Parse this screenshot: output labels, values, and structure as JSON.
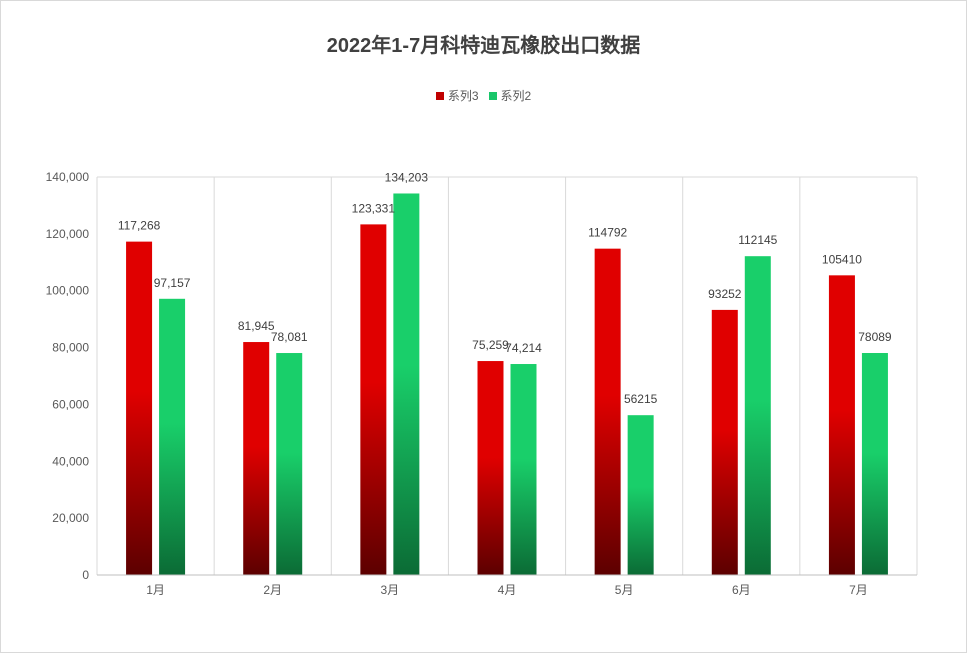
{
  "chart_data": {
    "type": "bar",
    "title": "2022年1-7月科特迪瓦橡胶出口数据",
    "categories": [
      "1月",
      "2月",
      "3月",
      "4月",
      "5月",
      "6月",
      "7月"
    ],
    "series": [
      {
        "name": "系列3",
        "values": [
          117268,
          81945,
          123331,
          75259,
          114792,
          93252,
          105410
        ],
        "labels": [
          "117,268",
          "81,945",
          "123,331",
          "75,259",
          "114792",
          "93252",
          "105410"
        ],
        "color_top": "#e00000",
        "color_bottom": "#5c0000"
      },
      {
        "name": "系列2",
        "values": [
          97157,
          78081,
          134203,
          74214,
          56215,
          112145,
          78089
        ],
        "labels": [
          "97,157",
          "78,081",
          "134,203",
          "74,214",
          "56215",
          "112145",
          "78089"
        ],
        "color_top": "#19cf6a",
        "color_bottom": "#0b6b35"
      }
    ],
    "ylim": [
      0,
      140000
    ],
    "yticks": [
      0,
      20000,
      40000,
      60000,
      80000,
      100000,
      120000,
      140000
    ],
    "ytick_labels": [
      "0",
      "20,000",
      "40,000",
      "60,000",
      "80,000",
      "100,000",
      "120,000",
      "140,000"
    ],
    "xlabel": "",
    "ylabel": "",
    "grid": "vertical category separators",
    "legend_position": "top-center"
  }
}
